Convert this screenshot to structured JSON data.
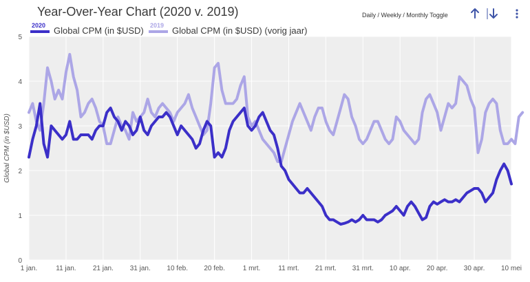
{
  "header": {
    "title": "Year-Over-Year Chart (2020 v. 2019)",
    "toggle_label": "Daily / Weekly / Monthly Toggle",
    "up_icon": "arrow-up-icon",
    "down_icon": "arrow-down-icon",
    "menu_icon": "more-vertical-icon"
  },
  "legend": {
    "current_year": "2020",
    "current_label": "Global CPM (in $USD)",
    "previous_year": "2019",
    "previous_label": "Global CPM (in $USD) (vorig jaar)"
  },
  "colors": {
    "current": "#3b2fc8",
    "previous": "#aca6e6",
    "plot_bg": "#eeeeee",
    "grid": "#ffffff"
  },
  "chart_data": {
    "type": "line",
    "ylabel": "Global CPM (in $USD)",
    "ylim": [
      0,
      5
    ],
    "yticks": [
      0,
      1,
      2,
      3,
      4,
      5
    ],
    "xlim": [
      0,
      130
    ],
    "xtick_labels": [
      {
        "x": 0,
        "label": "1 jan."
      },
      {
        "x": 10,
        "label": "11 jan."
      },
      {
        "x": 20,
        "label": "21 jan."
      },
      {
        "x": 30,
        "label": "31 jan."
      },
      {
        "x": 40,
        "label": "10 feb."
      },
      {
        "x": 50,
        "label": "20 feb."
      },
      {
        "x": 60,
        "label": "1 mrt."
      },
      {
        "x": 70,
        "label": "11 mrt."
      },
      {
        "x": 80,
        "label": "21 mrt."
      },
      {
        "x": 90,
        "label": "31 mrt."
      },
      {
        "x": 100,
        "label": "10 apr."
      },
      {
        "x": 110,
        "label": "20 apr."
      },
      {
        "x": 120,
        "label": "30 apr."
      },
      {
        "x": 130,
        "label": "10 mei"
      }
    ],
    "grid": true,
    "legend_position": "top-left",
    "series": [
      {
        "name": "Global CPM (in $USD)",
        "year": "2020",
        "values": [
          2.3,
          2.7,
          3.0,
          3.5,
          2.6,
          2.3,
          3.0,
          2.9,
          2.8,
          2.7,
          2.8,
          3.1,
          2.7,
          2.7,
          2.8,
          2.8,
          2.8,
          2.7,
          2.9,
          3.0,
          3.0,
          3.3,
          3.4,
          3.2,
          3.1,
          2.9,
          3.1,
          3.0,
          2.8,
          2.9,
          3.2,
          2.9,
          2.8,
          3.0,
          3.1,
          3.2,
          3.2,
          3.3,
          3.2,
          3.0,
          2.8,
          3.0,
          2.9,
          2.8,
          2.7,
          2.5,
          2.6,
          2.9,
          3.1,
          3.0,
          2.3,
          2.4,
          2.3,
          2.5,
          2.9,
          3.1,
          3.2,
          3.3,
          3.4,
          3.0,
          2.9,
          3.0,
          3.2,
          3.3,
          3.1,
          2.9,
          2.8,
          2.5,
          2.1,
          2.0,
          1.8,
          1.7,
          1.6,
          1.5,
          1.5,
          1.6,
          1.5,
          1.4,
          1.3,
          1.2,
          1.0,
          0.9,
          0.9,
          0.85,
          0.8,
          0.82,
          0.85,
          0.9,
          0.85,
          0.9,
          1.0,
          0.9,
          0.9,
          0.9,
          0.85,
          0.9,
          1.0,
          1.05,
          1.1,
          1.2,
          1.1,
          1.0,
          1.2,
          1.3,
          1.2,
          1.05,
          0.9,
          0.95,
          1.2,
          1.3,
          1.25,
          1.3,
          1.35,
          1.3,
          1.3,
          1.35,
          1.3,
          1.4,
          1.5,
          1.55,
          1.6,
          1.6,
          1.5,
          1.3,
          1.4,
          1.5,
          1.8,
          2.0,
          2.15,
          2.0,
          1.7
        ]
      },
      {
        "name": "Global CPM (in $USD) (vorig jaar)",
        "year": "2019",
        "values": [
          3.3,
          3.5,
          3.1,
          2.9,
          3.5,
          4.3,
          4.0,
          3.6,
          3.8,
          3.6,
          4.2,
          4.6,
          4.1,
          3.8,
          3.2,
          3.3,
          3.5,
          3.6,
          3.4,
          3.1,
          3.0,
          2.6,
          2.6,
          2.9,
          3.2,
          3.0,
          2.9,
          2.7,
          3.3,
          3.1,
          3.2,
          3.3,
          3.6,
          3.3,
          3.2,
          3.4,
          3.5,
          3.4,
          3.3,
          3.1,
          3.3,
          3.4,
          3.5,
          3.7,
          3.4,
          3.2,
          3.0,
          2.8,
          2.9,
          3.5,
          4.3,
          4.4,
          3.8,
          3.5,
          3.5,
          3.5,
          3.6,
          3.9,
          4.1,
          3.2,
          3.0,
          3.1,
          2.9,
          2.7,
          2.6,
          2.5,
          2.4,
          2.2,
          2.2,
          2.5,
          2.8,
          3.1,
          3.3,
          3.5,
          3.3,
          3.1,
          2.9,
          3.2,
          3.4,
          3.4,
          3.1,
          2.9,
          2.8,
          3.1,
          3.4,
          3.7,
          3.6,
          3.2,
          3.0,
          2.7,
          2.6,
          2.7,
          2.9,
          3.1,
          3.1,
          2.9,
          2.7,
          2.6,
          2.7,
          3.2,
          3.1,
          2.9,
          2.8,
          2.7,
          2.6,
          2.7,
          3.3,
          3.6,
          3.7,
          3.5,
          3.3,
          2.9,
          3.2,
          3.5,
          3.4,
          3.5,
          4.1,
          4.0,
          3.9,
          3.6,
          3.4,
          2.4,
          2.7,
          3.3,
          3.5,
          3.6,
          3.5,
          2.9,
          2.6,
          2.6,
          2.7,
          2.6,
          3.2,
          3.3
        ]
      }
    ]
  }
}
